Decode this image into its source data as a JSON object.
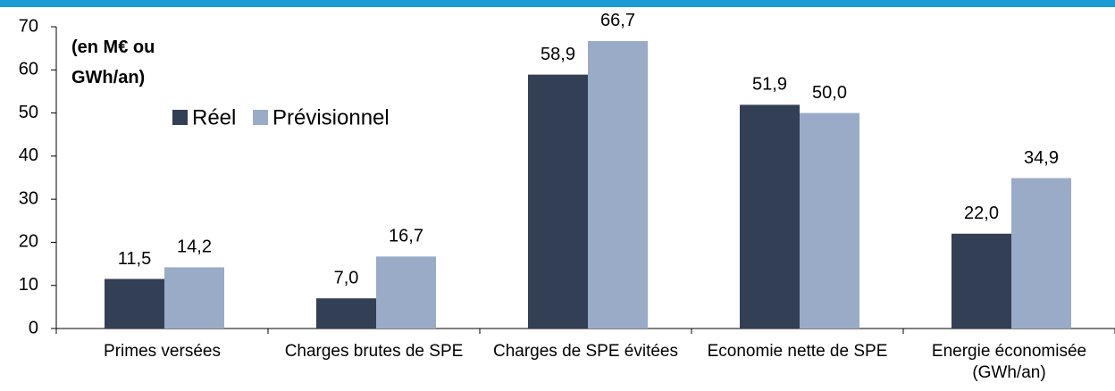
{
  "chart_data": {
    "type": "bar",
    "annotation": "(en M€ ou GWh/an)",
    "categories": [
      "Primes versées",
      "Charges brutes de SPE",
      "Charges de SPE évitées",
      "Economie nette de SPE",
      "Energie économisée (GWh/an)"
    ],
    "series": [
      {
        "name": "Réel",
        "color": "#333f55",
        "values": [
          11.5,
          7.0,
          58.9,
          51.9,
          22.0
        ],
        "value_labels": [
          "11,5",
          "7,0",
          "58,9",
          "51,9",
          "22,0"
        ]
      },
      {
        "name": "Prévisionnel",
        "color": "#9aabc8",
        "values": [
          14.2,
          16.7,
          66.7,
          50.0,
          34.9
        ],
        "value_labels": [
          "14,2",
          "16,7",
          "66,7",
          "50,0",
          "34,9"
        ]
      }
    ],
    "ylim": [
      0,
      70
    ],
    "yticks": [
      0,
      10,
      20,
      30,
      40,
      50,
      60,
      70
    ],
    "grid": false
  }
}
